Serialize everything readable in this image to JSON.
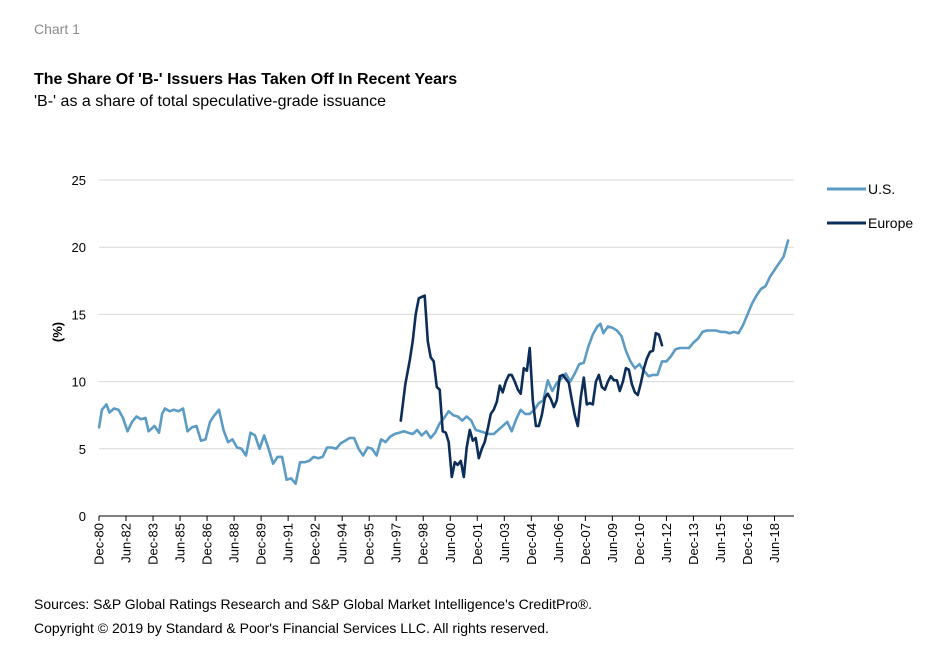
{
  "header": {
    "label": "Chart 1",
    "title": "The Share Of 'B-' Issuers Has Taken Off In Recent Years",
    "subtitle": "'B-' as a share of total speculative-grade issuance"
  },
  "footer": {
    "sources": "Sources: S&P Global Ratings Research and S&P Global Market Intelligence's CreditPro®.",
    "copyright": "Copyright © 2019 by Standard & Poor's Financial Services LLC. All rights reserved."
  },
  "chart_data": {
    "type": "line",
    "title": "The Share Of 'B-' Issuers Has Taken Off In Recent Years",
    "subtitle": "'B-' as a share of total speculative-grade issuance",
    "xlabel": "",
    "ylabel": "(%)",
    "ylim": [
      0,
      25
    ],
    "yticks": [
      0,
      5,
      10,
      15,
      20,
      25
    ],
    "xlim": [
      1980.917,
      2019.5
    ],
    "xticks": [
      {
        "label": "Dec-80",
        "x": 1980.917
      },
      {
        "label": "Jun-82",
        "x": 1982.417
      },
      {
        "label": "Dec-83",
        "x": 1983.917
      },
      {
        "label": "Jun-85",
        "x": 1985.417
      },
      {
        "label": "Dec-86",
        "x": 1986.917
      },
      {
        "label": "Jun-88",
        "x": 1988.417
      },
      {
        "label": "Dec-89",
        "x": 1989.917
      },
      {
        "label": "Jun-91",
        "x": 1991.417
      },
      {
        "label": "Dec-92",
        "x": 1992.917
      },
      {
        "label": "Jun-94",
        "x": 1994.417
      },
      {
        "label": "Dec-95",
        "x": 1995.917
      },
      {
        "label": "Jun-97",
        "x": 1997.417
      },
      {
        "label": "Dec-98",
        "x": 1998.917
      },
      {
        "label": "Jun-00",
        "x": 2000.417
      },
      {
        "label": "Dec-01",
        "x": 2001.917
      },
      {
        "label": "Jun-03",
        "x": 2003.417
      },
      {
        "label": "Dec-04",
        "x": 2004.917
      },
      {
        "label": "Jun-06",
        "x": 2006.417
      },
      {
        "label": "Dec-07",
        "x": 2007.917
      },
      {
        "label": "Jun-09",
        "x": 2009.417
      },
      {
        "label": "Dec-10",
        "x": 2010.917
      },
      {
        "label": "Jun-12",
        "x": 2012.417
      },
      {
        "label": "Dec-13",
        "x": 2013.917
      },
      {
        "label": "Jun-15",
        "x": 2015.417
      },
      {
        "label": "Dec-16",
        "x": 2016.917
      },
      {
        "label": "Jun-18",
        "x": 2018.417
      }
    ],
    "grid": "horizontal",
    "legend": "right",
    "series": [
      {
        "name": "U.S.",
        "color": "#5b9bc4",
        "points": [
          [
            1980.92,
            6.6
          ],
          [
            1981.08,
            7.9
          ],
          [
            1981.33,
            8.3
          ],
          [
            1981.5,
            7.7
          ],
          [
            1981.75,
            8.0
          ],
          [
            1982.0,
            7.9
          ],
          [
            1982.25,
            7.3
          ],
          [
            1982.5,
            6.3
          ],
          [
            1982.75,
            7.0
          ],
          [
            1983.0,
            7.4
          ],
          [
            1983.25,
            7.2
          ],
          [
            1983.5,
            7.3
          ],
          [
            1983.67,
            6.3
          ],
          [
            1984.0,
            6.7
          ],
          [
            1984.25,
            6.2
          ],
          [
            1984.42,
            7.6
          ],
          [
            1984.58,
            8.0
          ],
          [
            1984.83,
            7.8
          ],
          [
            1985.08,
            7.9
          ],
          [
            1985.33,
            7.8
          ],
          [
            1985.58,
            8.0
          ],
          [
            1985.83,
            6.3
          ],
          [
            1986.08,
            6.6
          ],
          [
            1986.33,
            6.7
          ],
          [
            1986.58,
            5.6
          ],
          [
            1986.83,
            5.7
          ],
          [
            1987.08,
            7.0
          ],
          [
            1987.33,
            7.5
          ],
          [
            1987.58,
            7.9
          ],
          [
            1987.83,
            6.4
          ],
          [
            1988.08,
            5.5
          ],
          [
            1988.33,
            5.7
          ],
          [
            1988.58,
            5.1
          ],
          [
            1988.83,
            5.0
          ],
          [
            1989.08,
            4.5
          ],
          [
            1989.33,
            6.2
          ],
          [
            1989.58,
            6.0
          ],
          [
            1989.83,
            5.0
          ],
          [
            1990.08,
            6.0
          ],
          [
            1990.33,
            5.0
          ],
          [
            1990.58,
            3.9
          ],
          [
            1990.83,
            4.4
          ],
          [
            1991.08,
            4.4
          ],
          [
            1991.33,
            2.7
          ],
          [
            1991.58,
            2.8
          ],
          [
            1991.83,
            2.4
          ],
          [
            1992.08,
            4.0
          ],
          [
            1992.33,
            4.0
          ],
          [
            1992.58,
            4.1
          ],
          [
            1992.83,
            4.4
          ],
          [
            1993.08,
            4.3
          ],
          [
            1993.33,
            4.4
          ],
          [
            1993.58,
            5.1
          ],
          [
            1993.83,
            5.1
          ],
          [
            1994.08,
            5.0
          ],
          [
            1994.33,
            5.4
          ],
          [
            1994.58,
            5.6
          ],
          [
            1994.83,
            5.8
          ],
          [
            1995.08,
            5.8
          ],
          [
            1995.33,
            5.0
          ],
          [
            1995.58,
            4.5
          ],
          [
            1995.83,
            5.1
          ],
          [
            1996.08,
            5.0
          ],
          [
            1996.33,
            4.5
          ],
          [
            1996.58,
            5.7
          ],
          [
            1996.83,
            5.5
          ],
          [
            1997.08,
            5.9
          ],
          [
            1997.33,
            6.1
          ],
          [
            1997.58,
            6.2
          ],
          [
            1997.83,
            6.3
          ],
          [
            1998.08,
            6.2
          ],
          [
            1998.33,
            6.1
          ],
          [
            1998.58,
            6.4
          ],
          [
            1998.83,
            6.0
          ],
          [
            1999.08,
            6.3
          ],
          [
            1999.33,
            5.8
          ],
          [
            1999.58,
            6.2
          ],
          [
            1999.83,
            6.9
          ],
          [
            2000.08,
            7.3
          ],
          [
            2000.33,
            7.8
          ],
          [
            2000.58,
            7.5
          ],
          [
            2000.83,
            7.4
          ],
          [
            2001.08,
            7.1
          ],
          [
            2001.33,
            7.4
          ],
          [
            2001.58,
            7.1
          ],
          [
            2001.83,
            6.4
          ],
          [
            2002.08,
            6.3
          ],
          [
            2002.33,
            6.2
          ],
          [
            2002.58,
            6.1
          ],
          [
            2002.83,
            6.1
          ],
          [
            2003.08,
            6.4
          ],
          [
            2003.33,
            6.7
          ],
          [
            2003.58,
            7.0
          ],
          [
            2003.83,
            6.3
          ],
          [
            2004.08,
            7.2
          ],
          [
            2004.33,
            7.9
          ],
          [
            2004.58,
            7.6
          ],
          [
            2004.83,
            7.6
          ],
          [
            2005.08,
            7.9
          ],
          [
            2005.33,
            8.4
          ],
          [
            2005.58,
            8.6
          ],
          [
            2005.83,
            10.1
          ],
          [
            2006.08,
            9.3
          ],
          [
            2006.33,
            9.9
          ],
          [
            2006.58,
            10.2
          ],
          [
            2006.83,
            10.6
          ],
          [
            2007.08,
            10.0
          ],
          [
            2007.33,
            10.6
          ],
          [
            2007.58,
            11.3
          ],
          [
            2007.83,
            11.4
          ],
          [
            2008.08,
            12.6
          ],
          [
            2008.33,
            13.5
          ],
          [
            2008.58,
            14.1
          ],
          [
            2008.75,
            14.3
          ],
          [
            2008.92,
            13.6
          ],
          [
            2009.17,
            14.1
          ],
          [
            2009.42,
            14.0
          ],
          [
            2009.67,
            13.8
          ],
          [
            2009.92,
            13.4
          ],
          [
            2010.17,
            12.3
          ],
          [
            2010.42,
            11.5
          ],
          [
            2010.67,
            11.0
          ],
          [
            2010.92,
            11.3
          ],
          [
            2011.17,
            10.8
          ],
          [
            2011.42,
            10.4
          ],
          [
            2011.67,
            10.5
          ],
          [
            2011.92,
            10.5
          ],
          [
            2012.17,
            11.5
          ],
          [
            2012.42,
            11.5
          ],
          [
            2012.67,
            11.9
          ],
          [
            2012.92,
            12.4
          ],
          [
            2013.17,
            12.5
          ],
          [
            2013.42,
            12.5
          ],
          [
            2013.67,
            12.5
          ],
          [
            2013.92,
            12.9
          ],
          [
            2014.17,
            13.2
          ],
          [
            2014.42,
            13.7
          ],
          [
            2014.67,
            13.8
          ],
          [
            2014.92,
            13.8
          ],
          [
            2015.17,
            13.8
          ],
          [
            2015.42,
            13.7
          ],
          [
            2015.67,
            13.7
          ],
          [
            2015.92,
            13.6
          ],
          [
            2016.17,
            13.7
          ],
          [
            2016.42,
            13.6
          ],
          [
            2016.67,
            14.2
          ],
          [
            2016.92,
            15.0
          ],
          [
            2017.17,
            15.8
          ],
          [
            2017.42,
            16.4
          ],
          [
            2017.67,
            16.9
          ],
          [
            2017.92,
            17.1
          ],
          [
            2018.17,
            17.8
          ],
          [
            2018.42,
            18.3
          ],
          [
            2018.67,
            18.8
          ],
          [
            2018.92,
            19.3
          ],
          [
            2019.17,
            20.5
          ]
        ]
      },
      {
        "name": "Europe",
        "color": "#0c2d57",
        "points": [
          [
            1997.67,
            7.1
          ],
          [
            1997.92,
            9.8
          ],
          [
            1998.17,
            11.6
          ],
          [
            1998.33,
            13.0
          ],
          [
            1998.5,
            15.0
          ],
          [
            1998.67,
            16.2
          ],
          [
            1998.83,
            16.3
          ],
          [
            1999.0,
            16.4
          ],
          [
            1999.17,
            13.0
          ],
          [
            1999.33,
            11.8
          ],
          [
            1999.5,
            11.5
          ],
          [
            1999.67,
            9.6
          ],
          [
            1999.83,
            9.4
          ],
          [
            2000.0,
            6.3
          ],
          [
            2000.17,
            6.2
          ],
          [
            2000.33,
            5.5
          ],
          [
            2000.5,
            2.9
          ],
          [
            2000.67,
            4.0
          ],
          [
            2000.83,
            3.8
          ],
          [
            2001.0,
            4.1
          ],
          [
            2001.17,
            2.9
          ],
          [
            2001.33,
            5.1
          ],
          [
            2001.5,
            6.4
          ],
          [
            2001.67,
            5.6
          ],
          [
            2001.83,
            5.8
          ],
          [
            2002.0,
            4.3
          ],
          [
            2002.17,
            5.0
          ],
          [
            2002.33,
            5.5
          ],
          [
            2002.5,
            6.5
          ],
          [
            2002.67,
            7.6
          ],
          [
            2002.83,
            7.9
          ],
          [
            2003.0,
            8.5
          ],
          [
            2003.17,
            9.7
          ],
          [
            2003.33,
            9.2
          ],
          [
            2003.5,
            10.0
          ],
          [
            2003.67,
            10.5
          ],
          [
            2003.83,
            10.5
          ],
          [
            2004.0,
            10.0
          ],
          [
            2004.17,
            9.4
          ],
          [
            2004.33,
            9.1
          ],
          [
            2004.5,
            11.0
          ],
          [
            2004.67,
            10.8
          ],
          [
            2004.83,
            12.5
          ],
          [
            2005.0,
            8.6
          ],
          [
            2005.17,
            6.7
          ],
          [
            2005.33,
            6.7
          ],
          [
            2005.5,
            7.5
          ],
          [
            2005.67,
            8.8
          ],
          [
            2005.83,
            9.1
          ],
          [
            2006.0,
            8.7
          ],
          [
            2006.17,
            8.1
          ],
          [
            2006.33,
            8.6
          ],
          [
            2006.5,
            10.4
          ],
          [
            2006.67,
            10.5
          ],
          [
            2006.83,
            10.2
          ],
          [
            2007.0,
            9.9
          ],
          [
            2007.17,
            8.6
          ],
          [
            2007.33,
            7.5
          ],
          [
            2007.5,
            6.7
          ],
          [
            2007.67,
            8.9
          ],
          [
            2007.83,
            10.3
          ],
          [
            2008.0,
            8.3
          ],
          [
            2008.17,
            8.4
          ],
          [
            2008.33,
            8.3
          ],
          [
            2008.5,
            10.0
          ],
          [
            2008.67,
            10.5
          ],
          [
            2008.83,
            9.6
          ],
          [
            2009.0,
            9.4
          ],
          [
            2009.17,
            10.0
          ],
          [
            2009.33,
            10.4
          ],
          [
            2009.5,
            10.1
          ],
          [
            2009.67,
            10.1
          ],
          [
            2009.83,
            9.3
          ],
          [
            2010.0,
            10.0
          ],
          [
            2010.17,
            11.0
          ],
          [
            2010.33,
            10.9
          ],
          [
            2010.5,
            9.8
          ],
          [
            2010.67,
            9.2
          ],
          [
            2010.83,
            9.0
          ],
          [
            2011.0,
            9.9
          ],
          [
            2011.17,
            11.0
          ],
          [
            2011.33,
            11.7
          ],
          [
            2011.5,
            12.2
          ],
          [
            2011.67,
            12.3
          ],
          [
            2011.83,
            13.6
          ],
          [
            2012.0,
            13.5
          ],
          [
            2012.17,
            12.7
          ]
        ]
      }
    ]
  }
}
